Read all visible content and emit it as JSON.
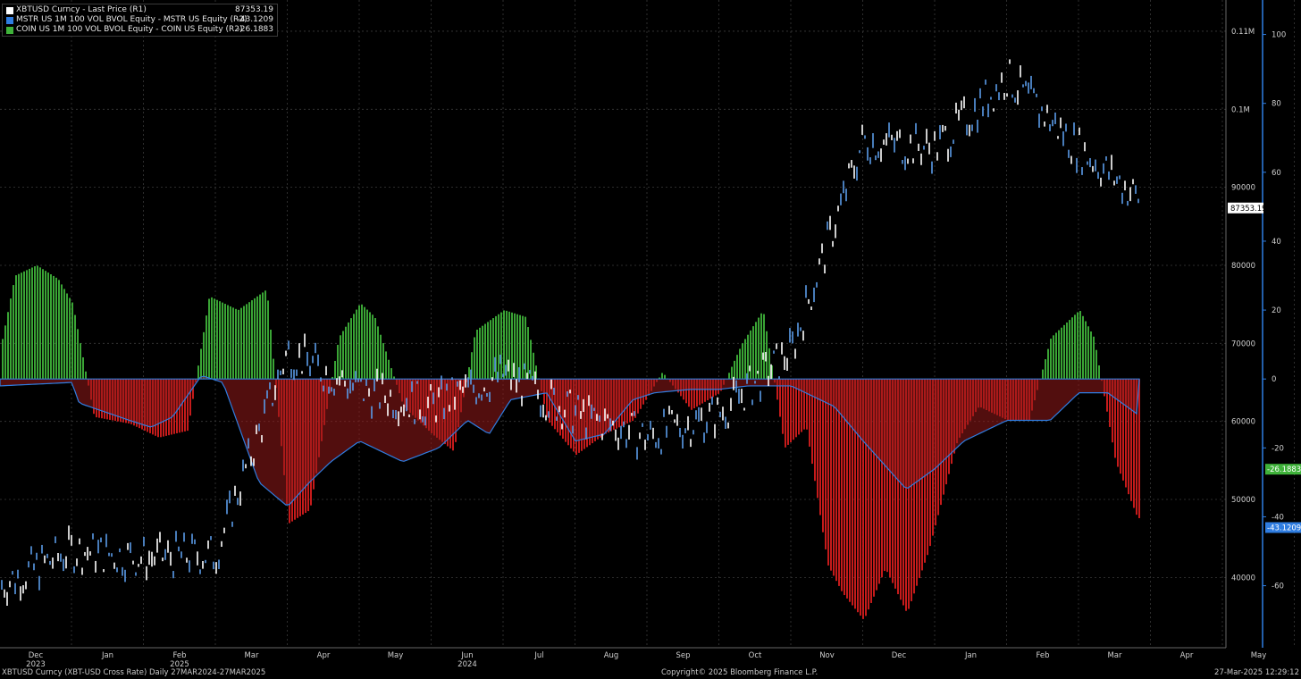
{
  "legend": [
    {
      "label": "XBTUSD Curncy - Last Price (R1)",
      "value": "87353.19",
      "color": "#ffffff"
    },
    {
      "label": "MSTR US 1M 100 VOL BVOL Equity - MSTR US Equity (R2)",
      "value": "-43.1209",
      "color": "#2f7de1"
    },
    {
      "label": "COIN US 1M 100 VOL BVOL Equity - COIN US Equity (R2)",
      "value": "-26.1883",
      "color": "#3fb23a"
    }
  ],
  "footer": {
    "left": "XBTUSD Curncy (XBT-USD Cross Rate)  Daily 27MAR2024-27MAR2025",
    "center": "Copyright© 2025 Bloomberg Finance L.P.",
    "right": "27-Mar-2025 12:29:12"
  },
  "colors": {
    "price": "#ffffff",
    "mstr": "#2f7de1",
    "coin_pos": "#3fb23a",
    "coin_neg": "#d61d1d",
    "grid": "#3a3a3a",
    "axis_blue": "#2f7de1"
  },
  "chart_data": {
    "type": "line",
    "x_tick_labels": [
      "Dec",
      "Jan",
      "Feb",
      "Mar",
      "Apr",
      "May",
      "Jun",
      "Jul",
      "Aug",
      "Sep",
      "Oct",
      "Nov",
      "Dec",
      "Jan",
      "Feb",
      "Mar",
      "Apr",
      "May"
    ],
    "x_year_labels": [
      {
        "label": "2023",
        "under": "Dec"
      },
      {
        "label": "2024",
        "under": "Jun"
      },
      {
        "label": "2025",
        "under": "Feb"
      }
    ],
    "y_r1_ticks": [
      "40000",
      "50000",
      "60000",
      "70000",
      "80000",
      "90000",
      "0.1M",
      "0.11M"
    ],
    "y_r1_range": [
      31000,
      114000
    ],
    "y_r2_ticks": [
      "-60",
      "-40",
      "-20",
      "0",
      "20",
      "40",
      "60",
      "80",
      "100"
    ],
    "y_r2_range": [
      -78,
      110
    ],
    "last_value_labels": {
      "price": "87353.19",
      "coin": "-26.1883",
      "mstr": "-43.1209"
    },
    "price_series_monthly": [
      {
        "x": "Nov 2023",
        "y": 39000
      },
      {
        "x": "Dec 2023",
        "y": 43500
      },
      {
        "x": "Jan 2024",
        "y": 42500
      },
      {
        "x": "Feb 2024",
        "y": 43000
      },
      {
        "x": "Mar 2024",
        "y": 69000
      },
      {
        "x": "Apr 2024",
        "y": 64000
      },
      {
        "x": "May 2024",
        "y": 62000
      },
      {
        "x": "Jun 2024",
        "y": 66000
      },
      {
        "x": "Jul 2024",
        "y": 61000
      },
      {
        "x": "Aug 2024",
        "y": 58000
      },
      {
        "x": "Sep 2024",
        "y": 61000
      },
      {
        "x": "Oct 2024",
        "y": 69000
      },
      {
        "x": "Nov 2024",
        "y": 96000
      },
      {
        "x": "Dec 2024",
        "y": 95000
      },
      {
        "x": "Jan 2025",
        "y": 104000
      },
      {
        "x": "Feb 2025",
        "y": 95000
      },
      {
        "x": "Mar 2025",
        "y": 87353
      }
    ],
    "series": [
      {
        "name": "MSTR US 1M 100 VOL BVOL Equity - MSTR US Equity (R2)",
        "axis": "R2",
        "values": [
          [
            0,
            -2
          ],
          [
            1,
            -1
          ],
          [
            1.1,
            -7
          ],
          [
            1.8,
            -12
          ],
          [
            2.1,
            -14
          ],
          [
            2.4,
            -11
          ],
          [
            2.8,
            1
          ],
          [
            3.1,
            -1
          ],
          [
            3.6,
            -30
          ],
          [
            4.0,
            -37
          ],
          [
            4.3,
            -30
          ],
          [
            4.6,
            -24
          ],
          [
            5.0,
            -18
          ],
          [
            5.6,
            -24
          ],
          [
            6.1,
            -20
          ],
          [
            6.5,
            -12
          ],
          [
            6.8,
            -16
          ],
          [
            7.1,
            -6
          ],
          [
            7.6,
            -4
          ],
          [
            8.0,
            -18
          ],
          [
            8.4,
            -16
          ],
          [
            8.8,
            -6
          ],
          [
            9.1,
            -4
          ],
          [
            9.6,
            -3
          ],
          [
            10.0,
            -3
          ],
          [
            10.4,
            -2
          ],
          [
            11.0,
            -2
          ],
          [
            11.6,
            -8
          ],
          [
            12.0,
            -18
          ],
          [
            12.6,
            -32
          ],
          [
            13.0,
            -26
          ],
          [
            13.4,
            -18
          ],
          [
            14.0,
            -12
          ],
          [
            14.6,
            -12
          ],
          [
            15.0,
            -4
          ],
          [
            15.4,
            -4
          ],
          [
            15.8,
            -10
          ],
          [
            16.2,
            -24
          ],
          [
            16.6,
            -40
          ],
          [
            16.9,
            -43
          ]
        ]
      },
      {
        "name": "COIN US 1M 100 VOL BVOL Equity - COIN US Equity (R2)",
        "axis": "R2",
        "values": [
          [
            0,
            9
          ],
          [
            0.2,
            30
          ],
          [
            0.5,
            33
          ],
          [
            0.8,
            29
          ],
          [
            1.0,
            22
          ],
          [
            1.3,
            -11
          ],
          [
            1.8,
            -13
          ],
          [
            2.2,
            -17
          ],
          [
            2.6,
            -15
          ],
          [
            2.9,
            24
          ],
          [
            3.3,
            20
          ],
          [
            3.7,
            26
          ],
          [
            4.0,
            -42
          ],
          [
            4.3,
            -38
          ],
          [
            4.7,
            12
          ],
          [
            5.0,
            22
          ],
          [
            5.2,
            18
          ],
          [
            5.6,
            -8
          ],
          [
            6.0,
            -16
          ],
          [
            6.3,
            -21
          ],
          [
            6.6,
            14
          ],
          [
            7.0,
            20
          ],
          [
            7.3,
            18
          ],
          [
            7.6,
            -12
          ],
          [
            8.0,
            -22
          ],
          [
            8.4,
            -16
          ],
          [
            8.8,
            -12
          ],
          [
            9.2,
            2
          ],
          [
            9.6,
            -9
          ],
          [
            10.0,
            -4
          ],
          [
            10.3,
            10
          ],
          [
            10.6,
            20
          ],
          [
            10.9,
            -20
          ],
          [
            11.2,
            -14
          ],
          [
            11.5,
            -54
          ],
          [
            11.7,
            -62
          ],
          [
            12.0,
            -70
          ],
          [
            12.3,
            -55
          ],
          [
            12.6,
            -68
          ],
          [
            12.9,
            -50
          ],
          [
            13.3,
            -18
          ],
          [
            13.6,
            -8
          ],
          [
            14.0,
            -12
          ],
          [
            14.3,
            -12
          ],
          [
            14.6,
            12
          ],
          [
            15.0,
            20
          ],
          [
            15.2,
            12
          ],
          [
            15.5,
            -24
          ],
          [
            15.8,
            -40
          ],
          [
            16.2,
            -46
          ],
          [
            16.5,
            -26
          ],
          [
            16.9,
            -26
          ]
        ]
      }
    ]
  }
}
